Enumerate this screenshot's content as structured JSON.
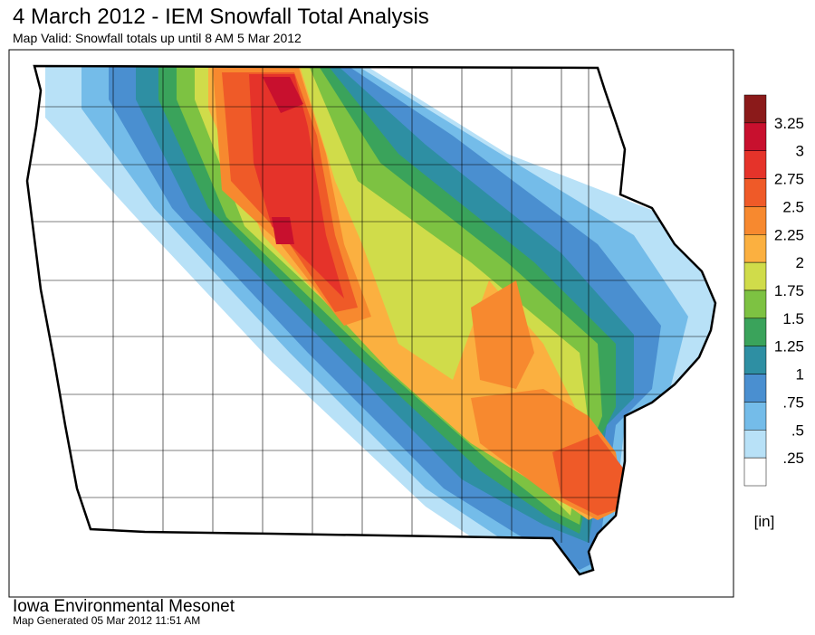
{
  "header": {
    "title": "4 March 2012 - IEM Snowfall Total Analysis",
    "subtitle": "Map Valid: Snowfall totals up until 8 AM 5 Mar 2012"
  },
  "legend": {
    "labels": [
      "3.25",
      "3",
      "2.75",
      "2.5",
      "2.25",
      "2",
      "1.75",
      "1.5",
      "1.25",
      "1",
      ".75",
      ".5",
      ".25"
    ],
    "colors": [
      "#8b1a1a",
      "#c8102e",
      "#e5332a",
      "#ef5a28",
      "#f7892f",
      "#fbb040",
      "#d0dc4a",
      "#7dc242",
      "#3aa35b",
      "#2e8fa3",
      "#4a8fd0",
      "#74bce9",
      "#b8e1f7",
      "#ffffff"
    ],
    "unit": "[in]"
  },
  "footer": {
    "organization": "Iowa Environmental Mesonet",
    "generated": "Map Generated 05 Mar 2012 11:51 AM"
  }
}
